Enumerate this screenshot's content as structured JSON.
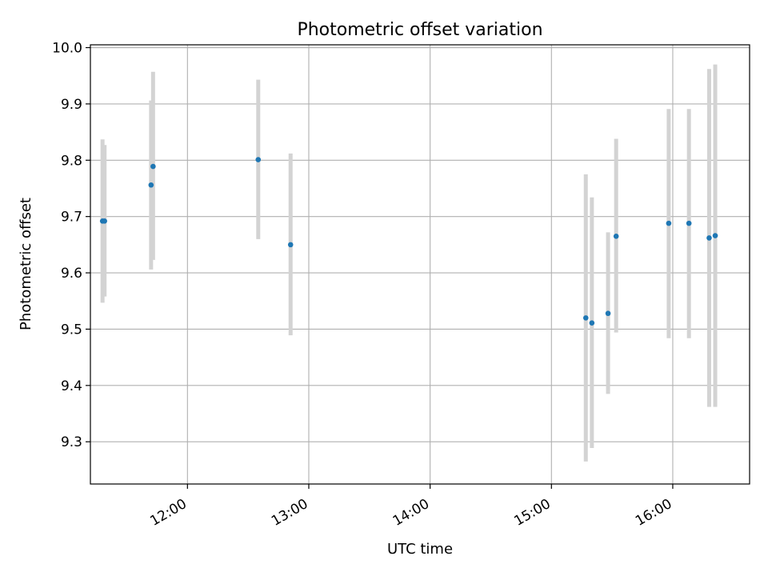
{
  "chart_data": {
    "type": "scatter",
    "title": "Photometric offset variation",
    "xlabel": "UTC time",
    "ylabel": "Photometric offset",
    "x_axis_type": "time",
    "xlim": [
      "11:12",
      "16:38"
    ],
    "ylim": [
      9.225,
      10.005
    ],
    "x_ticks": [
      "12:00",
      "13:00",
      "14:00",
      "15:00",
      "16:00"
    ],
    "y_ticks": [
      9.3,
      9.4,
      9.5,
      9.6,
      9.7,
      9.8,
      9.9,
      10.0
    ],
    "y_tick_labels": [
      "9.3",
      "9.4",
      "9.5",
      "9.6",
      "9.7",
      "9.8",
      "9.9",
      "10.0"
    ],
    "grid": true,
    "legend": "none",
    "colors": {
      "point": "#1f77b4",
      "errorbar": "#d3d3d3",
      "grid": "#b0b0b0"
    },
    "points": [
      {
        "x": "11:18",
        "y": 9.692,
        "err_low": 9.547,
        "err_high": 9.837
      },
      {
        "x": "11:19",
        "y": 9.692,
        "err_low": 9.558,
        "err_high": 9.827
      },
      {
        "x": "11:42",
        "y": 9.756,
        "err_low": 9.606,
        "err_high": 9.906
      },
      {
        "x": "11:43",
        "y": 9.789,
        "err_low": 9.623,
        "err_high": 9.957
      },
      {
        "x": "12:35",
        "y": 9.801,
        "err_low": 9.66,
        "err_high": 9.943
      },
      {
        "x": "12:51",
        "y": 9.65,
        "err_low": 9.489,
        "err_high": 9.812
      },
      {
        "x": "15:17",
        "y": 9.52,
        "err_low": 9.265,
        "err_high": 9.775
      },
      {
        "x": "15:20",
        "y": 9.511,
        "err_low": 9.289,
        "err_high": 9.734
      },
      {
        "x": "15:28",
        "y": 9.528,
        "err_low": 9.385,
        "err_high": 9.672
      },
      {
        "x": "15:32",
        "y": 9.665,
        "err_low": 9.494,
        "err_high": 9.838
      },
      {
        "x": "15:58",
        "y": 9.688,
        "err_low": 9.484,
        "err_high": 9.891
      },
      {
        "x": "16:08",
        "y": 9.688,
        "err_low": 9.484,
        "err_high": 9.891
      },
      {
        "x": "16:18",
        "y": 9.662,
        "err_low": 9.362,
        "err_high": 9.962
      },
      {
        "x": "16:21",
        "y": 9.666,
        "err_low": 9.362,
        "err_high": 9.97
      }
    ]
  }
}
